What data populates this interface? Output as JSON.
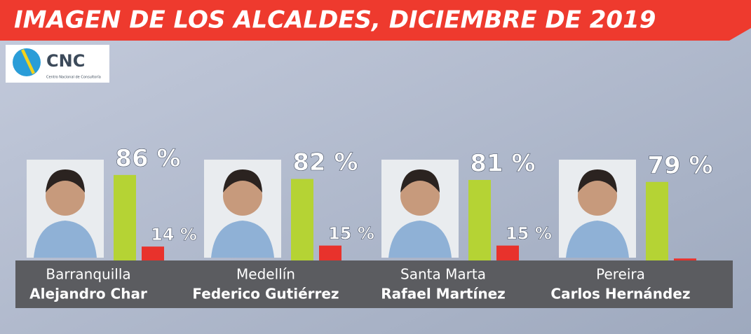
{
  "chart_data": {
    "type": "bar",
    "title": "IMAGEN DE LOS ALCALDES, DICIEMBRE DE 2019",
    "logo_text": "CNC",
    "logo_subtext": "Centro Nacional de Consultoría",
    "categories": [
      "Barranquilla",
      "Medellín",
      "Santa Marta",
      "Pereira"
    ],
    "mayors": [
      "Alejandro Char",
      "Federico Gutiérrez",
      "Rafael Martínez",
      "Carlos Hernández"
    ],
    "ylim": [
      0,
      100
    ],
    "series": [
      {
        "color": "#b5d334",
        "values": [
          86,
          82,
          81,
          79
        ],
        "value_labels": [
          "86 %",
          "82 %",
          "81 %",
          "79 %"
        ]
      },
      {
        "color": "#e8322c",
        "values": [
          14,
          15,
          15,
          2
        ],
        "value_labels": [
          "14 %",
          "15 %",
          "15 %",
          null
        ]
      }
    ]
  }
}
